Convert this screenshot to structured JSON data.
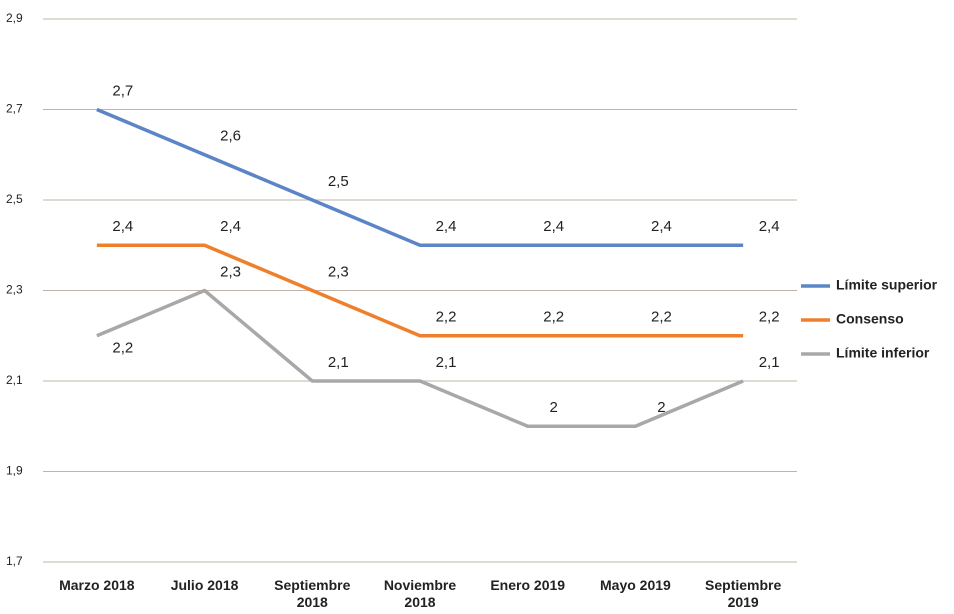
{
  "chart_data": {
    "type": "line",
    "categories": [
      "Marzo 2018",
      "Julio 2018",
      "Septiembre 2018",
      "Noviembre 2018",
      "Enero 2019",
      "Mayo 2019",
      "Septiembre 2019"
    ],
    "series": [
      {
        "name": "Límite superior",
        "color": "#5b85c6",
        "values": [
          2.7,
          2.6,
          2.5,
          2.4,
          2.4,
          2.4,
          2.4
        ],
        "value_labels": [
          "2,7",
          "2,6",
          "2,5",
          "2,4",
          "2,4",
          "2,4",
          "2,4"
        ]
      },
      {
        "name": "Consenso",
        "color": "#f07f2c",
        "values": [
          2.4,
          2.4,
          2.3,
          2.2,
          2.2,
          2.2,
          2.2
        ],
        "value_labels": [
          "2,4",
          "2,4",
          "2,3",
          "2,2",
          "2,2",
          "2,2",
          "2,2"
        ]
      },
      {
        "name": "Límite inferior",
        "color": "#a8a8a8",
        "values": [
          2.2,
          2.3,
          2.1,
          2.1,
          2.0,
          2.0,
          2.1
        ],
        "value_labels": [
          "2,2",
          "2,3",
          "2,1",
          "2,1",
          "2",
          "2",
          "2,1"
        ]
      }
    ],
    "ylim": [
      1.7,
      2.9
    ],
    "yticks": [
      {
        "value": 1.7,
        "label": "1,7"
      },
      {
        "value": 1.9,
        "label": "1,9"
      },
      {
        "value": 2.1,
        "label": "2,1"
      },
      {
        "value": 2.3,
        "label": "2,3"
      },
      {
        "value": 2.5,
        "label": "2,5"
      },
      {
        "value": 2.7,
        "label": "2,7"
      },
      {
        "value": 2.9,
        "label": "2,9"
      }
    ],
    "grid": true,
    "legend": "right"
  }
}
